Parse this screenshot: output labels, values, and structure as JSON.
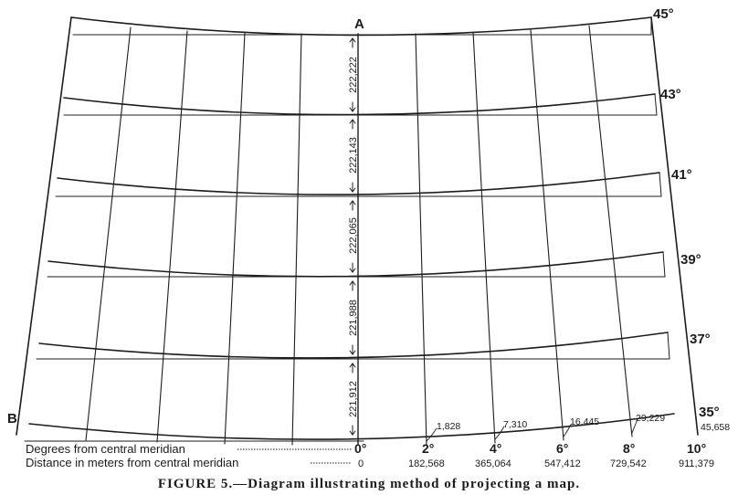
{
  "figure": {
    "point_labels": [
      "A",
      "B"
    ],
    "parallels": [
      "45°",
      "43°",
      "41°",
      "39°",
      "37°",
      "35°"
    ],
    "segment_distances": [
      "222,222",
      "222,143",
      "222,065",
      "221,988",
      "221,912"
    ],
    "meridian_degrees": [
      "0°",
      "2°",
      "4°",
      "6°",
      "8°",
      "10°"
    ],
    "meridian_distances": [
      "0",
      "182,568",
      "365,064",
      "547,412",
      "729,542",
      "911,379"
    ],
    "curvature_offsets": [
      "1,828",
      "7,310",
      "16,445",
      "29,229",
      "45,658"
    ],
    "legend_degrees": "Degrees from central meridian",
    "legend_distance": "Distance in meters from central meridian",
    "caption": "FIGURE 5.—Diagram illustrating method of projecting a map."
  }
}
